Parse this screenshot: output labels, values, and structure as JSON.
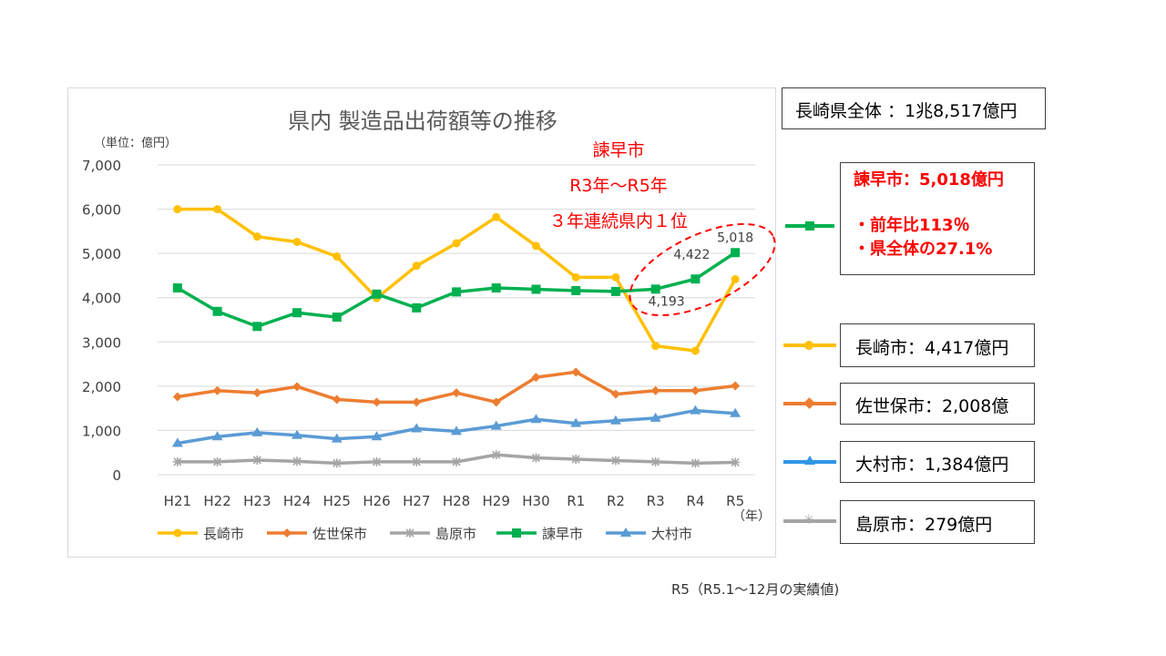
{
  "chart_data": {
    "type": "line",
    "title": "県内 製造品出荷額等の推移",
    "unit_label": "（単位：億円）",
    "x_unit_label": "（年）",
    "categories": [
      "H21",
      "H22",
      "H23",
      "H24",
      "H25",
      "H26",
      "H27",
      "H28",
      "H29",
      "H30",
      "R1",
      "R2",
      "R3",
      "R4",
      "R5"
    ],
    "ylim": [
      0,
      7000
    ],
    "yticks": [
      0,
      1000,
      2000,
      3000,
      4000,
      5000,
      6000,
      7000
    ],
    "ytick_labels": [
      "0",
      "1,000",
      "2,000",
      "3,000",
      "4,000",
      "5,000",
      "6,000",
      "7,000"
    ],
    "grid": true,
    "legend_position": "bottom",
    "series": [
      {
        "name": "長崎市",
        "color": "#FFC000",
        "marker": "circle",
        "values": [
          6000,
          6000,
          5380,
          5260,
          4930,
          3990,
          4720,
          5230,
          5820,
          5170,
          4460,
          4460,
          2910,
          2800,
          4417
        ]
      },
      {
        "name": "佐世保市",
        "color": "#ED7D31",
        "marker": "diamond",
        "values": [
          1760,
          1900,
          1850,
          1990,
          1700,
          1640,
          1640,
          1850,
          1640,
          2200,
          2320,
          1820,
          1900,
          1900,
          2008
        ]
      },
      {
        "name": "島原市",
        "color": "#A5A5A5",
        "marker": "star",
        "values": [
          290,
          290,
          330,
          300,
          260,
          290,
          290,
          290,
          450,
          380,
          350,
          320,
          290,
          260,
          279
        ]
      },
      {
        "name": "諫早市",
        "color": "#00B050",
        "marker": "square",
        "values": [
          4220,
          3690,
          3350,
          3660,
          3560,
          4080,
          3770,
          4130,
          4220,
          4190,
          4160,
          4140,
          4193,
          4422,
          5018
        ]
      },
      {
        "name": "大村市",
        "color": "#5B9BD5",
        "marker": "triangle",
        "values": [
          710,
          860,
          950,
          890,
          810,
          860,
          1040,
          980,
          1100,
          1250,
          1160,
          1220,
          1280,
          1450,
          1384
        ]
      }
    ],
    "data_labels": [
      {
        "series": "諫早市",
        "category": "R3",
        "text": "4,193"
      },
      {
        "series": "諫早市",
        "category": "R4",
        "text": "4,422"
      },
      {
        "series": "諫早市",
        "category": "R5",
        "text": "5,018"
      }
    ],
    "annotation": {
      "lines": [
        "諫早市",
        "R3年～R5年",
        "３年連続県内１位"
      ],
      "color": "#FF0000"
    }
  },
  "side_panel": {
    "prefecture_total": "長崎県全体 ：1兆8,517億円",
    "isahaya": {
      "title": "諫早市：5,018億円",
      "bullet1": "・前年比113％",
      "bullet2": "・県全体の27.1%",
      "text_color": "#FF0000",
      "line_color": "#00B050"
    },
    "items": [
      {
        "label": "長崎市：4,417億円",
        "line_color": "#FFC000"
      },
      {
        "label": "佐世保市：2,008億",
        "line_color": "#ED7D31"
      },
      {
        "label": "大村市：1,384億円",
        "line_color": "#2E96E6"
      },
      {
        "label": "島原市：279億円",
        "line_color": "#A5A5A5"
      }
    ]
  },
  "footnote": "R5（R5.1～12月の実績値)"
}
